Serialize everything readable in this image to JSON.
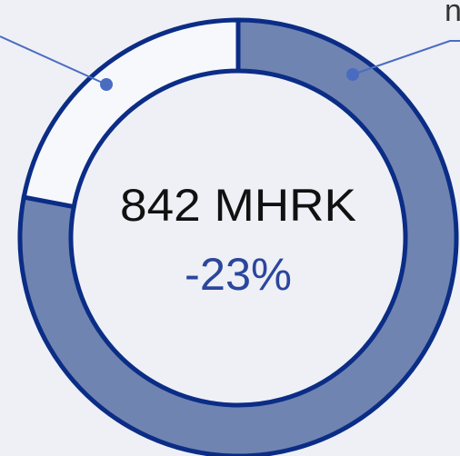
{
  "chart_data": {
    "type": "donut",
    "categories": [
      "n",
      null
    ],
    "series": [
      {
        "values": [
          78,
          22
        ],
        "colors": [
          "#7084b2",
          "#f7f8fc"
        ]
      }
    ],
    "center_value": "842 MHRK",
    "center_change": "-23%",
    "border_color": "#0b2d86",
    "leader_color": "#4a6cc0"
  }
}
